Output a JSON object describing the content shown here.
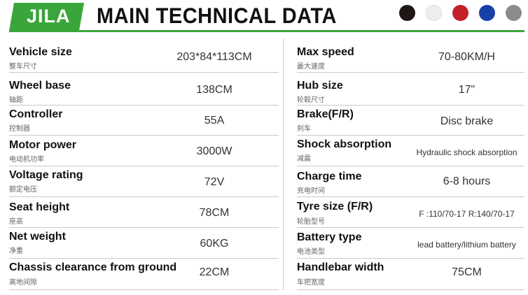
{
  "header": {
    "brand": "JILA",
    "title": "MAIN TECHNICAL DATA",
    "colors": [
      {
        "name": "black",
        "hex": "#1e1614"
      },
      {
        "name": "white",
        "hex": "#eeeeee"
      },
      {
        "name": "red",
        "hex": "#c3202a"
      },
      {
        "name": "blue",
        "hex": "#1840a8"
      },
      {
        "name": "gray",
        "hex": "#8c8c8c"
      }
    ],
    "accent": "#3aa53b"
  },
  "specs_left": [
    {
      "label": "Vehicle size",
      "label_cn": "整车尺寸",
      "value": "203*84*113CM"
    },
    {
      "label": "Wheel base",
      "label_cn": "轴距",
      "value": "138CM"
    },
    {
      "label": "Controller",
      "label_cn": "控制器",
      "value": "55A"
    },
    {
      "label": "Motor power",
      "label_cn": "电动机功率",
      "value": "3000W"
    },
    {
      "label": "Voltage rating",
      "label_cn": "额定电压",
      "value": "72V"
    },
    {
      "label": "Seat height",
      "label_cn": "座高",
      "value": "78CM"
    },
    {
      "label": "Net weight",
      "label_cn": "净重",
      "value": "60KG"
    },
    {
      "label": "Chassis clearance from ground",
      "label_cn": "离地间隙",
      "value": "22CM"
    }
  ],
  "specs_right": [
    {
      "label": "Max speed",
      "label_cn": "最大速度",
      "value": "70-80KM/H"
    },
    {
      "label": "Hub size",
      "label_cn": "轮毂尺寸",
      "value": "17\""
    },
    {
      "label": "Brake(F/R)",
      "label_cn": "刹车",
      "value": "Disc brake"
    },
    {
      "label": "Shock absorption",
      "label_cn": "减震",
      "value": "Hydraulic shock absorption"
    },
    {
      "label": "Charge time",
      "label_cn": "充电时间",
      "value": "6-8 hours"
    },
    {
      "label": "Tyre size (F/R)",
      "label_cn": "轮胎型号",
      "value": "F :110/70-17 R:140/70-17"
    },
    {
      "label": "Battery type",
      "label_cn": "电池类型",
      "value": "lead battery/lithium battery"
    },
    {
      "label": "Handlebar width",
      "label_cn": "车把宽度",
      "value": "75CM"
    }
  ]
}
